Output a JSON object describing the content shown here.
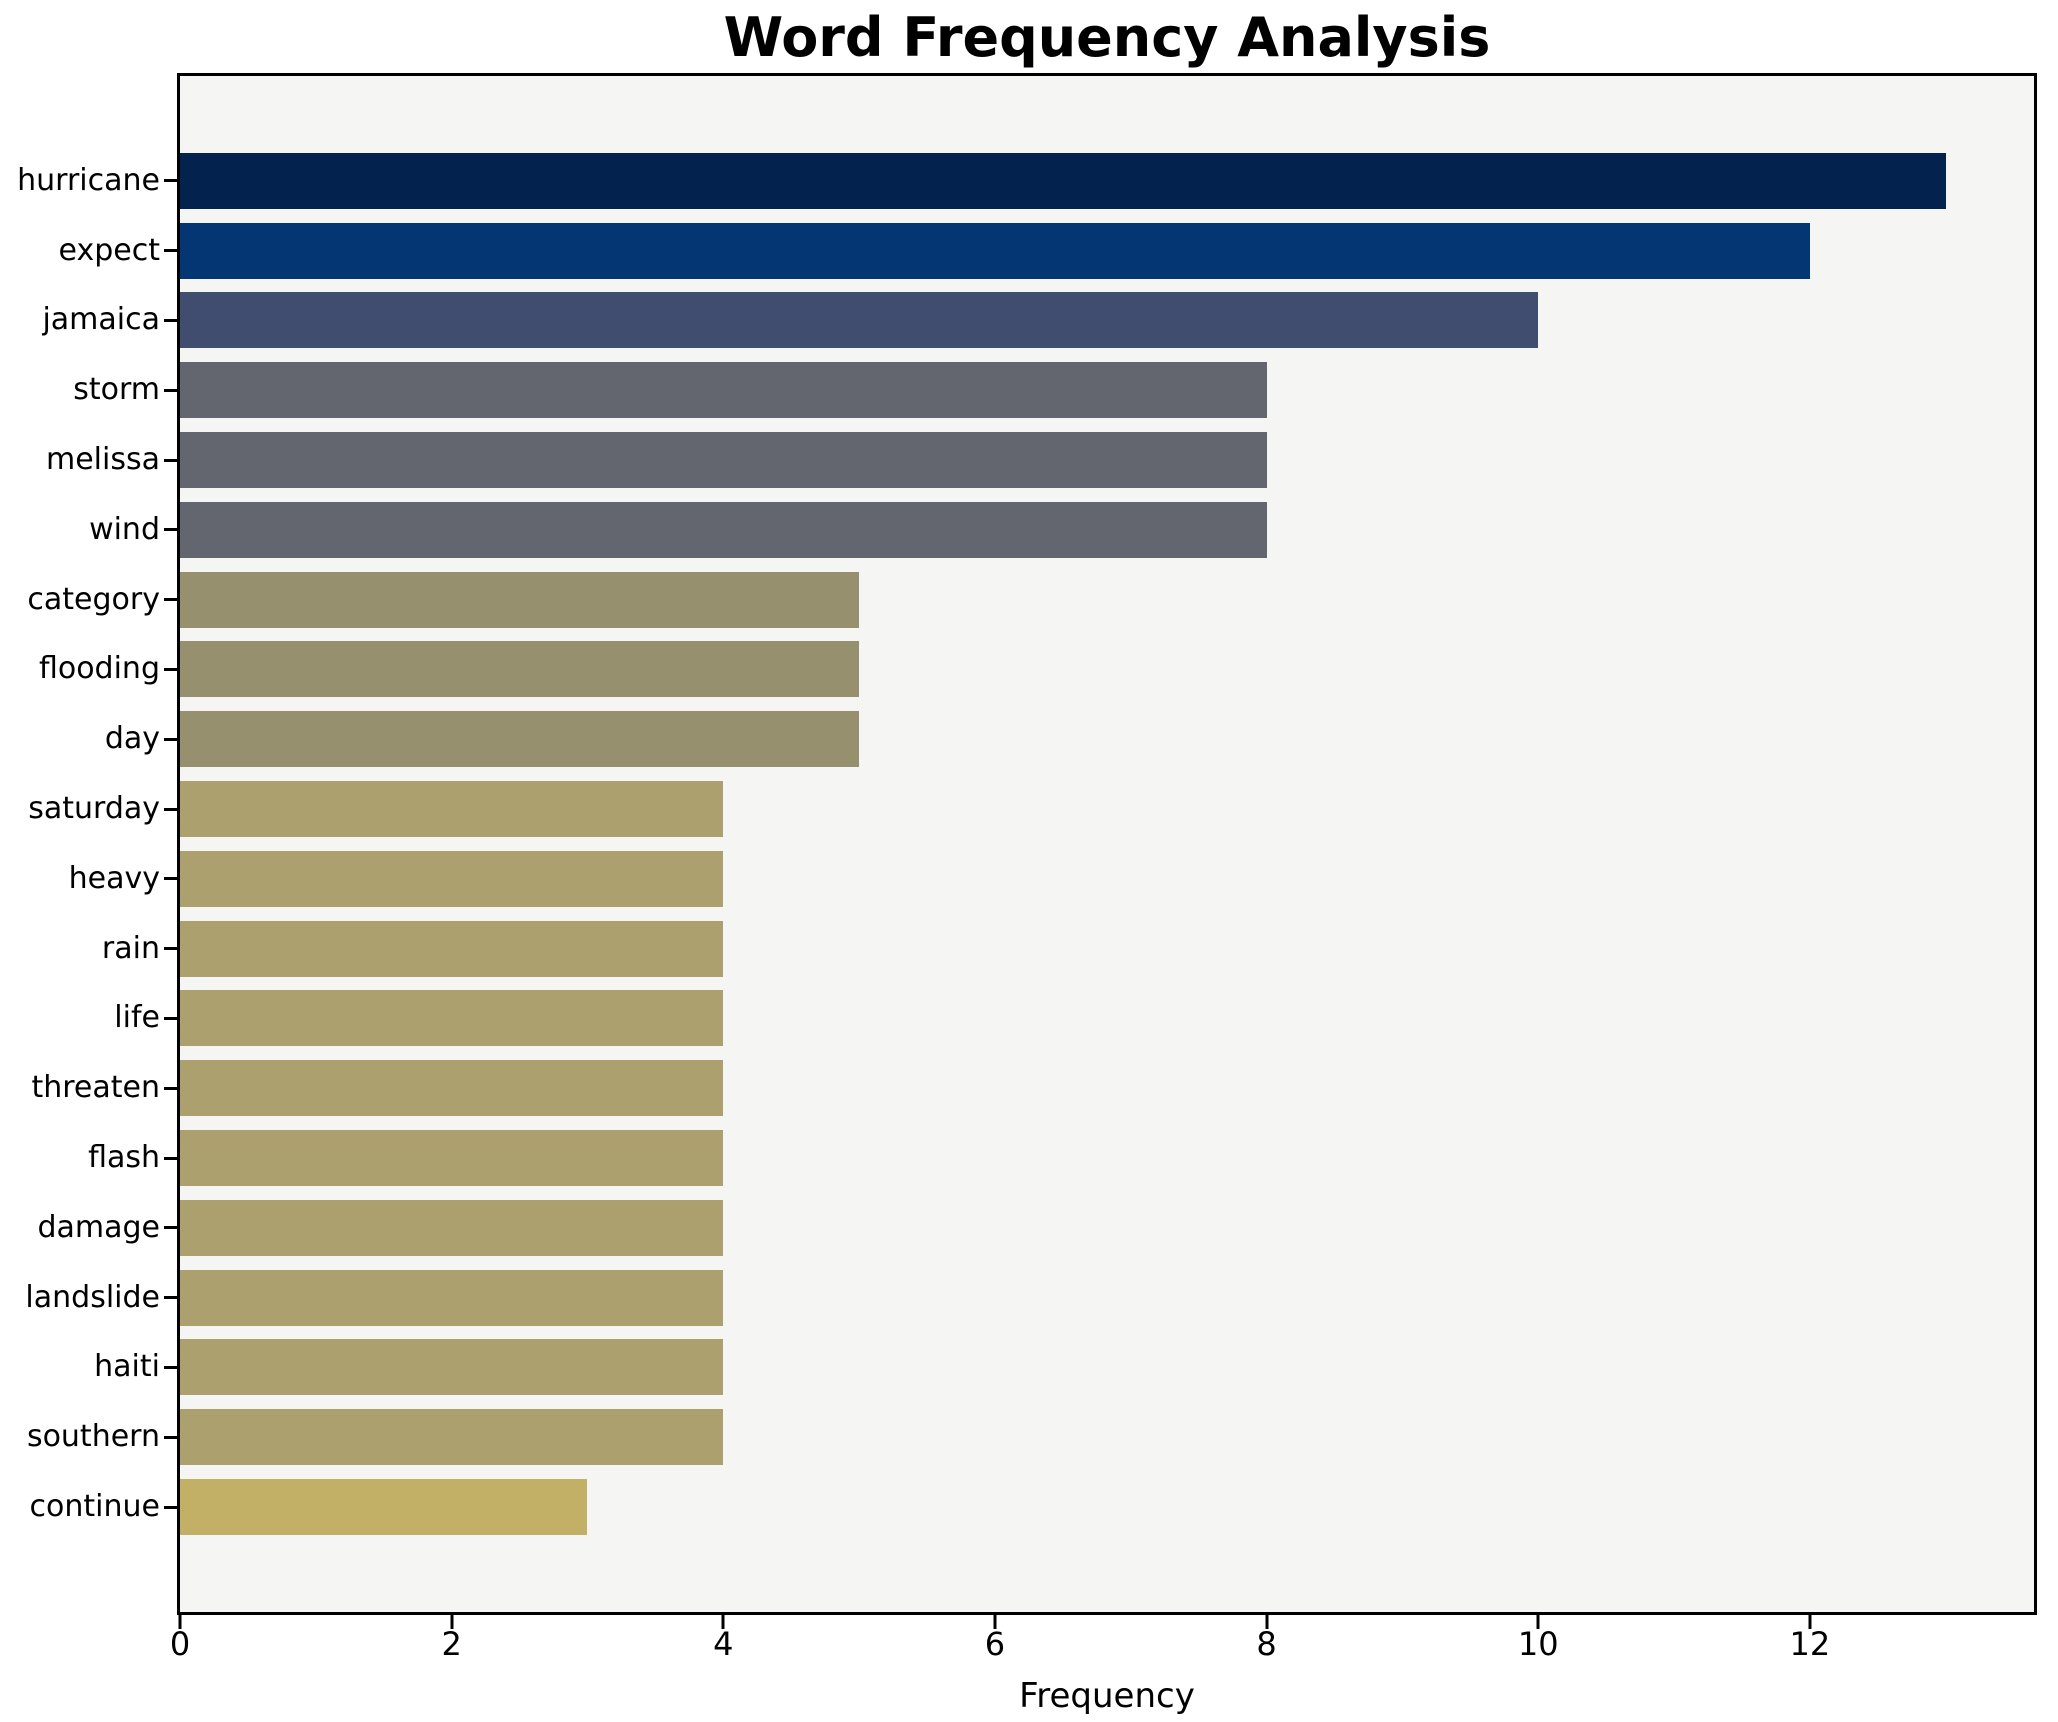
{
  "chart_data": {
    "type": "bar",
    "orientation": "horizontal",
    "title": "Word Frequency Analysis",
    "xlabel": "Frequency",
    "ylabel": "",
    "categories": [
      "hurricane",
      "expect",
      "jamaica",
      "storm",
      "melissa",
      "wind",
      "category",
      "flooding",
      "day",
      "saturday",
      "heavy",
      "rain",
      "life",
      "threaten",
      "flash",
      "damage",
      "landslide",
      "haiti",
      "southern",
      "continue"
    ],
    "values": [
      13,
      12,
      10,
      8,
      8,
      8,
      5,
      5,
      5,
      4,
      4,
      4,
      4,
      4,
      4,
      4,
      4,
      4,
      4,
      3
    ],
    "bar_colors": [
      "#03234e",
      "#043673",
      "#414d6e",
      "#63656f",
      "#63656f",
      "#63656f",
      "#97906f",
      "#97906f",
      "#97906f",
      "#aba06e",
      "#aba06e",
      "#aba06e",
      "#aba06e",
      "#aba06e",
      "#aba06e",
      "#aba06e",
      "#aba06e",
      "#aba06e",
      "#aba06e",
      "#c1b066"
    ],
    "xlim": [
      0,
      13.65
    ],
    "xticks": [
      0,
      2,
      4,
      6,
      8,
      10,
      12
    ],
    "grid": false,
    "legend": "none",
    "plot_background": "#f5f5f4",
    "figure_background": "#ffffff",
    "spine_color": "#000000",
    "text_color": "#000000"
  }
}
